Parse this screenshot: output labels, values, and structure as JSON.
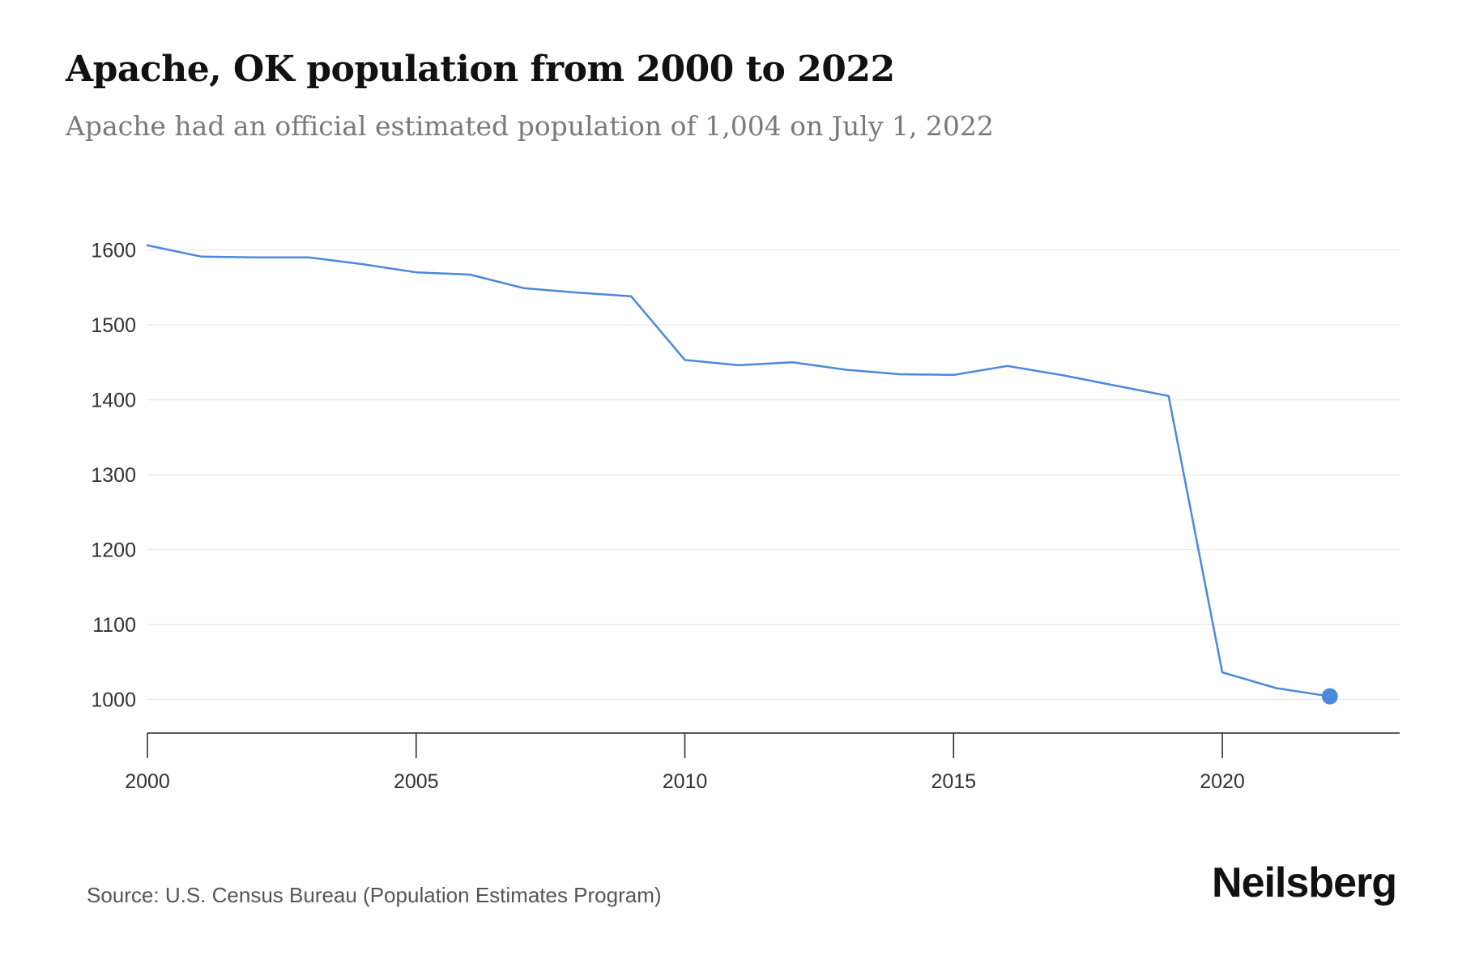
{
  "header": {
    "title": "Apache, OK population from 2000 to 2022",
    "subtitle": "Apache had an official estimated population of 1,004 on July 1, 2022"
  },
  "footer": {
    "source": "Source: U.S. Census Bureau (Population Estimates Program)",
    "brand": "Neilsberg"
  },
  "colors": {
    "line": "#4a89dc",
    "marker": "#4a89dc",
    "grid": "#ececec",
    "axis": "#222222"
  },
  "chart_data": {
    "type": "line",
    "x": [
      2000,
      2001,
      2002,
      2003,
      2004,
      2005,
      2006,
      2007,
      2008,
      2009,
      2010,
      2011,
      2012,
      2013,
      2014,
      2015,
      2016,
      2017,
      2018,
      2019,
      2020,
      2021,
      2022
    ],
    "series": [
      {
        "values": [
          1606,
          1591,
          1590,
          1590,
          1581,
          1570,
          1567,
          1549,
          1543,
          1538,
          1453,
          1446,
          1450,
          1440,
          1434,
          1433,
          1445,
          1433,
          1419,
          1405,
          1036,
          1015,
          1004
        ]
      }
    ],
    "title": "Apache, OK population from 2000 to 2022",
    "subtitle": "Apache had an official estimated population of 1,004 on July 1, 2022",
    "xlabel": "",
    "ylabel": "",
    "xlim": [
      2000,
      2023.3
    ],
    "ylim": [
      955,
      1620
    ],
    "yticks": [
      1000,
      1100,
      1200,
      1300,
      1400,
      1500,
      1600
    ],
    "xticks": [
      2000,
      2005,
      2010,
      2015,
      2020
    ],
    "grid": true,
    "legend": "none",
    "highlight_last_point": true
  }
}
